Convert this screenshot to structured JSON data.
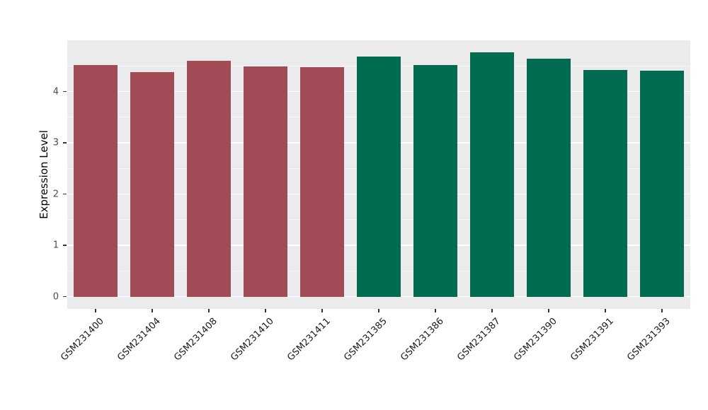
{
  "chart_data": {
    "type": "bar",
    "title": "",
    "xlabel": "",
    "ylabel": "Expression Level",
    "categories": [
      "GSM231400",
      "GSM231404",
      "GSM231408",
      "GSM231410",
      "GSM231411",
      "GSM231385",
      "GSM231386",
      "GSM231387",
      "GSM231390",
      "GSM231391",
      "GSM231393"
    ],
    "values": [
      4.52,
      4.38,
      4.6,
      4.49,
      4.48,
      4.68,
      4.52,
      4.76,
      4.64,
      4.42,
      4.41
    ],
    "bar_colors": [
      "#A04B55",
      "#A04B55",
      "#A04B55",
      "#A04B55",
      "#A04B55",
      "#006B4E",
      "#006B4E",
      "#006B4E",
      "#006B4E",
      "#006B4E",
      "#006B4E"
    ],
    "group_colors": {
      "red_group": "#A04B55",
      "green_group": "#006B4E"
    },
    "yticks": [
      0,
      1,
      2,
      3,
      4
    ],
    "ylim": [
      0,
      5
    ],
    "grid": true,
    "legend": "none",
    "panel_bg": "#EBEBEB",
    "grid_color": "#FFFFFF"
  }
}
